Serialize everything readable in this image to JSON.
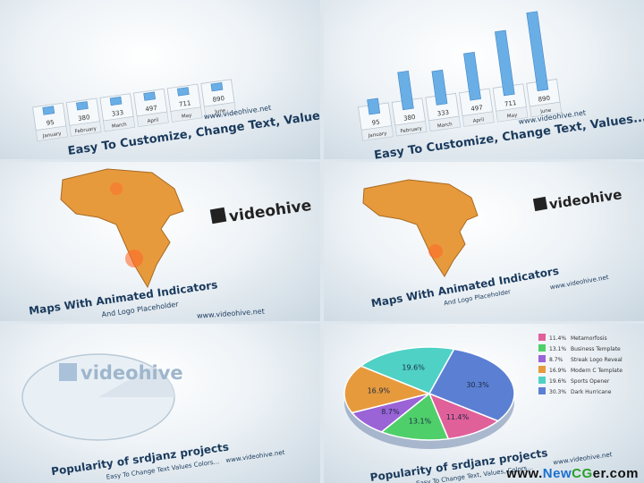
{
  "bar_panel": {
    "months": [
      "January",
      "February",
      "March",
      "April",
      "May",
      "June"
    ],
    "values": [
      "95",
      "380",
      "333",
      "497",
      "711",
      "890"
    ],
    "caption": "Easy To Customize, Change Text, Values...",
    "url": "www.videohive.net"
  },
  "map_panel": {
    "logo": "videohive",
    "caption": "Maps With Animated Indicators",
    "subcaption": "And Logo Placeholder",
    "url": "www.videohive.net"
  },
  "pie_panel": {
    "logo": "videohive",
    "caption": "Popularity of srdjanz projects",
    "subcaption_left": "Easy To Change Text Values Colors...",
    "subcaption_right": "Easy To Change Text, Values, Colors...",
    "url": "www.videohive.net",
    "slices": [
      {
        "label": "11.4%",
        "color": "#e0609a"
      },
      {
        "label": "13.1%",
        "color": "#4fcf6a"
      },
      {
        "label": "8.7%",
        "color": "#9a63d6"
      },
      {
        "label": "16.9%",
        "color": "#e79a3c"
      },
      {
        "label": "19.6%",
        "color": "#4fd1c5"
      },
      {
        "label": "30.3%",
        "color": "#5b7fd3"
      }
    ],
    "legend": [
      {
        "pct": "11.4%",
        "name": "Metamorfosis",
        "color": "#e0609a"
      },
      {
        "pct": "13.1%",
        "name": "Business Template",
        "color": "#4fcf6a"
      },
      {
        "pct": "8.7%",
        "name": "Streak Logo Reveal",
        "color": "#9a63d6"
      },
      {
        "pct": "16.9%",
        "name": "Modern C Template",
        "color": "#e79a3c"
      },
      {
        "pct": "19.6%",
        "name": "Sports Opener",
        "color": "#4fd1c5"
      },
      {
        "pct": "30.3%",
        "name": "Dark Hurricane",
        "color": "#5b7fd3"
      }
    ]
  },
  "footer": {
    "prefix": "www.",
    "n": "New",
    "c": "CG",
    "suffix": "er.com"
  }
}
